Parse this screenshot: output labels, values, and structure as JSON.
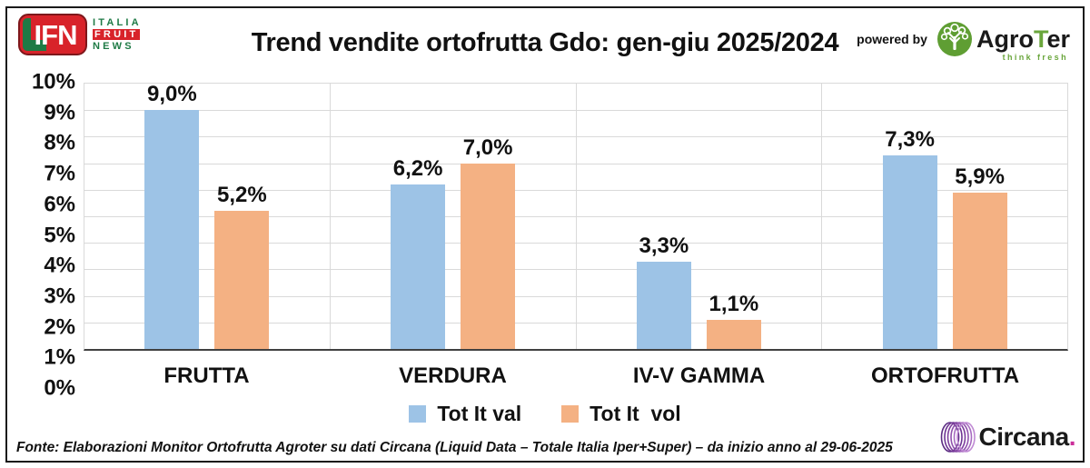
{
  "title": "Trend vendite ortofrutta Gdo: gen-giu 2025/2024",
  "header": {
    "ifn_logo": {
      "abbr": "IFN",
      "word1": "ITALIA",
      "word2": "FRUIT",
      "word3": "NEWS"
    },
    "powered_by_label": "powered by",
    "agroter_logo": {
      "name_part1": "Agro",
      "name_part2": "T",
      "name_part3": "er",
      "tagline": "think fresh"
    }
  },
  "chart_data": {
    "type": "bar",
    "title": "Trend vendite ortofrutta Gdo: gen-giu 2025/2024",
    "categories": [
      "FRUTTA",
      "VERDURA",
      "IV-V GAMMA",
      "ORTOFRUTTA"
    ],
    "series": [
      {
        "name": "Tot It val",
        "color": "#9DC3E6",
        "values": [
          9.0,
          6.2,
          3.3,
          7.3
        ],
        "value_labels": [
          "9,0%",
          "6,2%",
          "3,3%",
          "7,3%"
        ]
      },
      {
        "name": "Tot It  vol",
        "color": "#F4B183",
        "values": [
          5.2,
          7.0,
          1.1,
          5.9
        ],
        "value_labels": [
          "5,2%",
          "7,0%",
          "1,1%",
          "5,9%"
        ]
      }
    ],
    "ylabel": "",
    "xlabel": "",
    "ylim": [
      0,
      10
    ],
    "y_ticks": [
      "10%",
      "9%",
      "8%",
      "7%",
      "6%",
      "5%",
      "4%",
      "3%",
      "2%",
      "1%",
      "0%"
    ],
    "grid": true,
    "gridline_color": "#D9D9D9",
    "legend_position": "bottom"
  },
  "footer": {
    "source": "Fonte: Elaborazioni Monitor Ortofrutta Agroter su dati Circana (Liquid Data – Totale Italia Iper+Super) –  da inizio anno al 29-06-2025",
    "circana_logo": {
      "name": "Circana",
      "dot": "."
    }
  }
}
